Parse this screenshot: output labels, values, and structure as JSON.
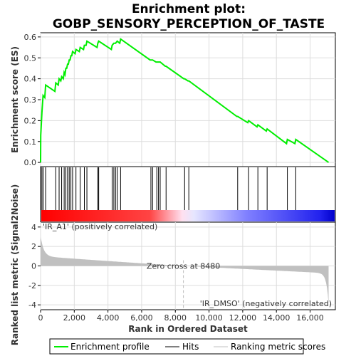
{
  "chart_data": {
    "type": "line",
    "title_line1": "Enrichment plot:",
    "title_line2": "GOBP_SENSORY_PERCEPTION_OF_TASTE",
    "xlabel": "Rank in Ordered Dataset",
    "ylabel_top": "Enrichment score (ES)",
    "ylabel_bottom": "Ranked list metric (Signal2Noise)",
    "xlim": [
      0,
      17500
    ],
    "ylim_top": [
      -0.02,
      0.62
    ],
    "ylim_bottom": [
      -4.5,
      4.5
    ],
    "x_ticks": [
      0,
      2000,
      4000,
      6000,
      8000,
      10000,
      12000,
      14000,
      16000
    ],
    "x_tick_labels": [
      "0",
      "2,000",
      "4,000",
      "6,000",
      "8,000",
      "10,000",
      "12,000",
      "14,000",
      "16,000"
    ],
    "y_ticks_top": [
      0.0,
      0.1,
      0.2,
      0.3,
      0.4,
      0.5,
      0.6
    ],
    "y_tick_labels_top": [
      "0.0",
      "0.1",
      "0.2",
      "0.3",
      "0.4",
      "0.5",
      "0.6"
    ],
    "y_ticks_bottom": [
      4,
      2,
      0,
      -2,
      -4
    ],
    "y_tick_labels_bottom": [
      "4",
      "2",
      "0",
      "-2",
      "-4"
    ],
    "zero_cross_rank": 8480,
    "zero_cross_label": "Zero cross at 8480",
    "pos_label": "'IR_A1' (positively correlated)",
    "neg_label": "'IR_DMSO' (negatively correlated)",
    "hits": [
      10,
      80,
      150,
      300,
      900,
      1100,
      1250,
      1400,
      1500,
      1600,
      1700,
      1800,
      1900,
      2100,
      2350,
      2600,
      2750,
      3400,
      3450,
      4250,
      4350,
      4450,
      4550,
      4750,
      6550,
      6650,
      6900,
      7000,
      7100,
      7450,
      8550,
      8800,
      11700,
      12350,
      12900,
      13450,
      14650,
      15150
    ],
    "es_points": [
      [
        0,
        0.0
      ],
      [
        10,
        0.13
      ],
      [
        80,
        0.24
      ],
      [
        150,
        0.32
      ],
      [
        250,
        0.31
      ],
      [
        300,
        0.37
      ],
      [
        850,
        0.34
      ],
      [
        900,
        0.38
      ],
      [
        1050,
        0.37
      ],
      [
        1100,
        0.4
      ],
      [
        1200,
        0.39
      ],
      [
        1250,
        0.41
      ],
      [
        1350,
        0.4
      ],
      [
        1400,
        0.43
      ],
      [
        1450,
        0.42
      ],
      [
        1500,
        0.45
      ],
      [
        1550,
        0.45
      ],
      [
        1600,
        0.47
      ],
      [
        1650,
        0.47
      ],
      [
        1700,
        0.49
      ],
      [
        1750,
        0.49
      ],
      [
        1800,
        0.51
      ],
      [
        1850,
        0.51
      ],
      [
        1900,
        0.53
      ],
      [
        2050,
        0.52
      ],
      [
        2100,
        0.54
      ],
      [
        2300,
        0.53
      ],
      [
        2350,
        0.55
      ],
      [
        2550,
        0.54
      ],
      [
        2600,
        0.56
      ],
      [
        2700,
        0.56
      ],
      [
        2750,
        0.58
      ],
      [
        3350,
        0.55
      ],
      [
        3400,
        0.57
      ],
      [
        3450,
        0.58
      ],
      [
        4200,
        0.54
      ],
      [
        4250,
        0.56
      ],
      [
        4350,
        0.57
      ],
      [
        4450,
        0.57
      ],
      [
        4550,
        0.58
      ],
      [
        4700,
        0.57
      ],
      [
        4750,
        0.59
      ],
      [
        6500,
        0.49
      ],
      [
        6550,
        0.49
      ],
      [
        6650,
        0.49
      ],
      [
        6850,
        0.48
      ],
      [
        6900,
        0.48
      ],
      [
        7000,
        0.48
      ],
      [
        7100,
        0.48
      ],
      [
        7400,
        0.46
      ],
      [
        7450,
        0.46
      ],
      [
        8500,
        0.4
      ],
      [
        8550,
        0.4
      ],
      [
        8750,
        0.39
      ],
      [
        8800,
        0.39
      ],
      [
        11650,
        0.22
      ],
      [
        11700,
        0.22
      ],
      [
        12300,
        0.19
      ],
      [
        12350,
        0.2
      ],
      [
        12850,
        0.17
      ],
      [
        12900,
        0.18
      ],
      [
        13400,
        0.15
      ],
      [
        13450,
        0.16
      ],
      [
        14600,
        0.09
      ],
      [
        14650,
        0.11
      ],
      [
        15100,
        0.09
      ],
      [
        15150,
        0.11
      ],
      [
        17100,
        0.0
      ]
    ],
    "legend": [
      "Enrichment profile",
      "Hits",
      "Ranking metric scores"
    ],
    "colors": {
      "es_line": "#00ee00",
      "hit_line": "#000000",
      "metric_fill": "#c0c0c0",
      "pos_text": "#ff0000",
      "neg_text": "#0000ff",
      "grid": "#dddddd",
      "zero_dash": "#bbbbbb"
    }
  }
}
